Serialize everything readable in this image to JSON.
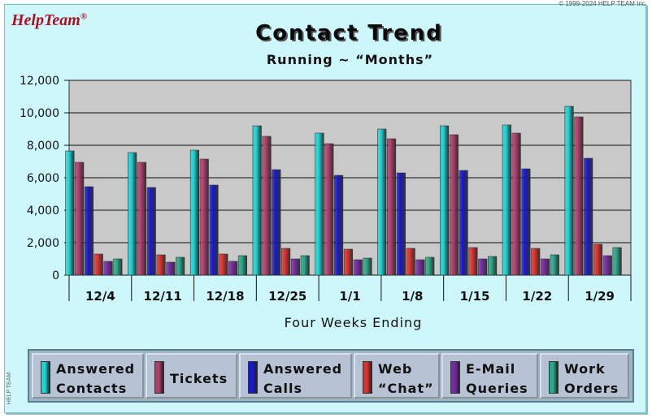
{
  "copyright": "© 1999-2024 HELP TEAM Inc.",
  "logo": {
    "text": "HelpTeam",
    "mark": "®"
  },
  "side_label": "HELP TEAM",
  "colors": {
    "background": "#cdf7fa",
    "plot_area": "#c9c9c9",
    "series": [
      "#19d6d6",
      "#b33c6c",
      "#1818c8",
      "#e0302c",
      "#7828a8",
      "#27a88a"
    ]
  },
  "chart_data": {
    "type": "bar",
    "title": "Contact Trend",
    "subtitle": "Running ~ “Months”",
    "xlabel": "Four Weeks Ending",
    "ylabel": "",
    "ylim": [
      0,
      12000
    ],
    "yticks": [
      "0",
      "2,000",
      "4,000",
      "6,000",
      "8,000",
      "10,000",
      "12,000"
    ],
    "grid": true,
    "legend_position": "bottom",
    "categories": [
      "12/4",
      "12/11",
      "12/18",
      "12/25",
      "1/1",
      "1/8",
      "1/15",
      "1/22",
      "1/29"
    ],
    "series": [
      {
        "name": "Answered\nContacts",
        "values": [
          7650,
          7550,
          7700,
          9200,
          8750,
          9000,
          9200,
          9250,
          10400
        ]
      },
      {
        "name": "Tickets",
        "values": [
          6950,
          6950,
          7150,
          8550,
          8100,
          8400,
          8650,
          8750,
          9750
        ]
      },
      {
        "name": "Answered\nCalls",
        "values": [
          5450,
          5400,
          5550,
          6500,
          6150,
          6300,
          6450,
          6550,
          7200
        ]
      },
      {
        "name": "Web\n“Chat”",
        "values": [
          1300,
          1250,
          1300,
          1650,
          1600,
          1650,
          1700,
          1650,
          1900
        ]
      },
      {
        "name": "E-Mail\nQueries",
        "values": [
          850,
          800,
          850,
          1000,
          950,
          950,
          1000,
          1000,
          1200
        ]
      },
      {
        "name": "Work\nOrders",
        "values": [
          1000,
          1100,
          1200,
          1200,
          1050,
          1100,
          1150,
          1250,
          1700
        ]
      }
    ]
  }
}
